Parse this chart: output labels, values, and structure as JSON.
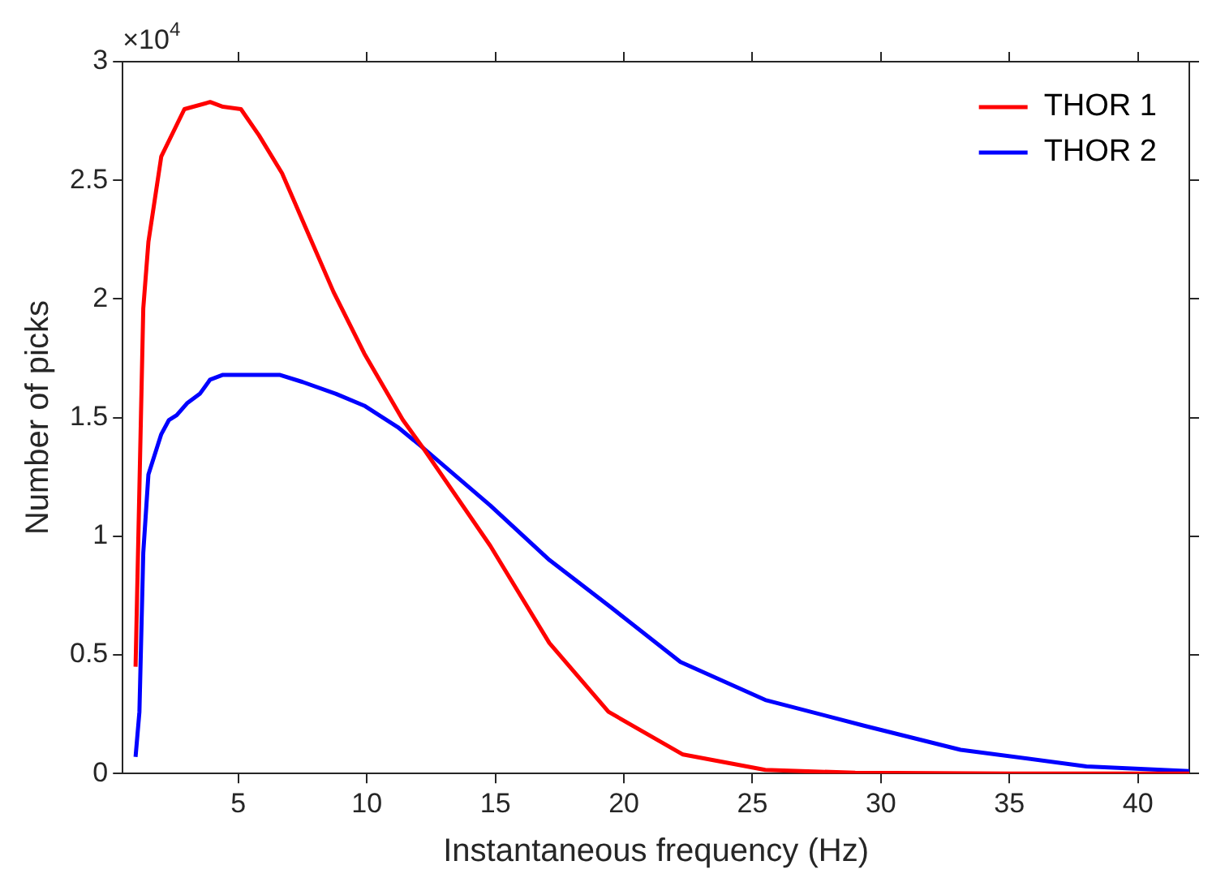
{
  "chart_data": {
    "type": "line",
    "xlabel": "Instantaneous frequency (Hz)",
    "ylabel": "Number of picks",
    "annotations": [
      "×10$^{4}$"
    ],
    "xlim": [
      0.5,
      42
    ],
    "xticks": [
      5,
      10,
      15,
      20,
      25,
      30,
      35,
      40
    ],
    "ylim": [
      0,
      3
    ],
    "yticks": [
      0,
      0.5,
      1,
      1.5,
      2,
      2.5,
      3
    ],
    "grid": false,
    "legend": "top right",
    "marker": "none",
    "line_style": "solid",
    "series": [
      {
        "name": "THOR 1",
        "color": "#ff0000",
        "x": [
          1.0,
          1.3,
          1.5,
          2.0,
          2.9,
          3.9,
          4.4,
          5.1,
          5.8,
          6.7,
          7.5,
          8.7,
          9.9,
          11.4,
          12.2,
          14.8,
          17.1,
          19.4,
          22.3,
          25.5,
          29,
          35,
          42
        ],
        "values": [
          0.45,
          1.96,
          2.24,
          2.6,
          2.8,
          2.83,
          2.81,
          2.8,
          2.69,
          2.53,
          2.33,
          2.03,
          1.77,
          1.49,
          1.37,
          0.96,
          0.55,
          0.26,
          0.08,
          0.015,
          0.003,
          0,
          0
        ]
      },
      {
        "name": "THOR 2",
        "color": "#0000ff",
        "x": [
          1.0,
          1.15,
          1.3,
          1.5,
          2.0,
          2.3,
          2.6,
          3.0,
          3.5,
          3.9,
          4.4,
          5.2,
          6.6,
          7.5,
          8.8,
          9.9,
          11.2,
          12.1,
          14.8,
          17.1,
          19.5,
          22.2,
          25.5,
          29.4,
          33.1,
          38,
          42
        ],
        "values": [
          0.07,
          0.26,
          0.93,
          1.26,
          1.43,
          1.49,
          1.51,
          1.56,
          1.6,
          1.66,
          1.68,
          1.68,
          1.68,
          1.65,
          1.6,
          1.55,
          1.46,
          1.38,
          1.13,
          0.9,
          0.7,
          0.47,
          0.31,
          0.2,
          0.1,
          0.03,
          0.01
        ]
      }
    ]
  }
}
